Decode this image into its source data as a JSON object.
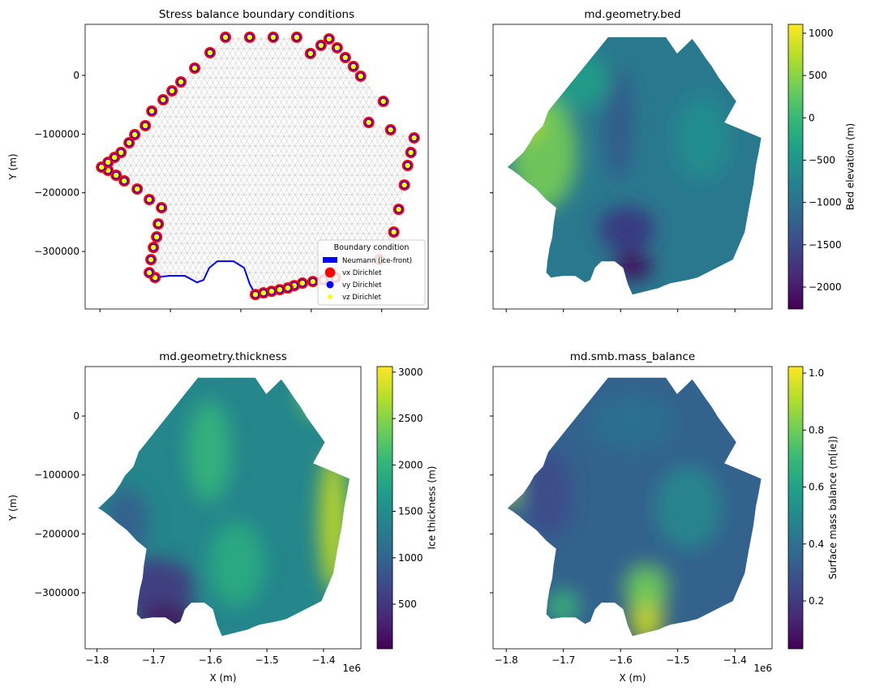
{
  "chart_data": [
    {
      "type": "scatter",
      "title": "Stress balance boundary conditions",
      "ylabel": "Y (m)",
      "xlim": [
        -1821000,
        -1334000
      ],
      "ylim": [
        -398000,
        87000
      ],
      "xticks": [
        -1800000,
        -1700000,
        -1600000,
        -1500000,
        -1400000
      ],
      "yticks": [
        {
          "value": 0,
          "label": "0"
        },
        {
          "value": -100000,
          "label": "−100000"
        },
        {
          "value": -200000,
          "label": "−200000"
        },
        {
          "value": -300000,
          "label": "−300000"
        }
      ],
      "x": [
        -1721800,
        -1729900,
        -1727600,
        -1724100,
        -1719500,
        -1717200,
        -1712600,
        -1729900,
        -1747100,
        -1765500,
        -1777000,
        -1788500,
        -1797700,
        -1788500,
        -1779300,
        -1770100,
        -1758600,
        -1750600,
        -1735600,
        -1726400,
        -1710300,
        -1697700,
        -1685100,
        -1665500,
        -1643700,
        -1621800,
        -1587400,
        -1554000,
        -1520700,
        -1501100,
        -1486200,
        -1474700,
        -1463200,
        -1451700,
        -1440200,
        -1429900,
        -1397700,
        -1418400,
        -1387400,
        -1354000,
        -1358600,
        -1363200,
        -1367800,
        -1375900,
        -1382800,
        -1403500,
        -1465500,
        -1482800,
        -1497700,
        -1512600,
        -1524100,
        -1533300,
        -1544800,
        -1556300,
        -1567800,
        -1579300
      ],
      "y": [
        -344400,
        -336100,
        -313900,
        -293200,
        -275200,
        -253100,
        -225400,
        -211600,
        -193600,
        -179800,
        -170100,
        -161800,
        -156300,
        -148000,
        -139700,
        -131400,
        -114800,
        -101000,
        -85700,
        -60900,
        -41500,
        -26300,
        -11100,
        12400,
        38700,
        65000,
        65000,
        65000,
        65000,
        37300,
        51200,
        62200,
        47000,
        30400,
        15200,
        -1400,
        -44300,
        -80200,
        -92700,
        -106500,
        -131400,
        -153500,
        -186700,
        -228200,
        -266900,
        -313900,
        -344400,
        -348500,
        -351300,
        -354000,
        -358200,
        -362300,
        -365100,
        -367900,
        -370600,
        -373400
      ],
      "series": [
        {
          "name": "Neumann (ice-front)",
          "color": "#0000ff",
          "x": [
            -1579300,
            -1587400,
            -1595400,
            -1610400,
            -1633400,
            -1644800,
            -1652900,
            -1662100,
            -1679300,
            -1702300,
            -1721800
          ],
          "y": [
            -373400,
            -355400,
            -327800,
            -316700,
            -316700,
            -327800,
            -348500,
            -352700,
            -341600,
            -341600,
            -344400
          ]
        },
        {
          "name": "vx Dirichlet",
          "color": "#ff0000"
        },
        {
          "name": "vy Dirichlet",
          "color": "#0000ff"
        },
        {
          "name": "vz Dirichlet",
          "color": "#ffff00"
        }
      ],
      "legend": {
        "title": "Boundary condition",
        "loc": "lower right"
      }
    },
    {
      "type": "tripcolor",
      "title": "md.geometry.bed",
      "colormap": "viridis",
      "xlim": [
        -1823000,
        -1335000
      ],
      "ylim": [
        -398000,
        87000
      ],
      "xticks": [
        -1800000,
        -1700000,
        -1600000,
        -1500000,
        -1400000
      ],
      "yticks": [
        0,
        -100000,
        -200000,
        -300000
      ],
      "clim": [
        -2259,
        1105
      ],
      "clabel": "Bed elevation (m)",
      "cticks": [
        {
          "value": 1000,
          "label": "1000"
        },
        {
          "value": 500,
          "label": "500"
        },
        {
          "value": 0,
          "label": "0"
        },
        {
          "value": -500,
          "label": "−500"
        },
        {
          "value": -1000,
          "label": "−1000"
        },
        {
          "value": -1500,
          "label": "−1500"
        },
        {
          "value": -2000,
          "label": "−2000"
        }
      ]
    },
    {
      "type": "tripcolor",
      "title": "md.geometry.thickness",
      "colormap": "viridis",
      "xlabel": "X (m)",
      "ylabel": "Y (m)",
      "x_offset_label": "1e6",
      "xlim": [
        -1821000,
        -1334000
      ],
      "ylim": [
        -395000,
        84000
      ],
      "xticks": [
        {
          "value": -1800000,
          "label": "−1.8"
        },
        {
          "value": -1700000,
          "label": "−1.7"
        },
        {
          "value": -1600000,
          "label": "−1.6"
        },
        {
          "value": -1500000,
          "label": "−1.5"
        },
        {
          "value": -1400000,
          "label": "−1.4"
        }
      ],
      "yticks": [
        {
          "value": 0,
          "label": "0"
        },
        {
          "value": -100000,
          "label": "−100000"
        },
        {
          "value": -200000,
          "label": "−200000"
        },
        {
          "value": -300000,
          "label": "−300000"
        }
      ],
      "clim": [
        20,
        3060
      ],
      "clabel": "Ice thickness (m)",
      "cticks": [
        500,
        1000,
        1500,
        2000,
        2500,
        3000
      ]
    },
    {
      "type": "tripcolor",
      "title": "md.smb.mass_balance",
      "colormap": "viridis",
      "xlabel": "X (m)",
      "x_offset_label": "1e6",
      "xlim": [
        -1823000,
        -1335000
      ],
      "ylim": [
        -395000,
        84000
      ],
      "xticks": [
        {
          "value": -1800000,
          "label": "−1.8"
        },
        {
          "value": -1700000,
          "label": "−1.7"
        },
        {
          "value": -1600000,
          "label": "−1.6"
        },
        {
          "value": -1500000,
          "label": "−1.5"
        },
        {
          "value": -1400000,
          "label": "−1.4"
        }
      ],
      "yticks": [
        0,
        -100000,
        -200000,
        -300000
      ],
      "clim": [
        0.032,
        1.023
      ],
      "clabel": "Surface mass balance (m[ie])",
      "cticks": [
        0.2,
        0.4,
        0.6,
        0.8,
        {
          "value": 1.0,
          "label": "1.0"
        }
      ]
    }
  ]
}
